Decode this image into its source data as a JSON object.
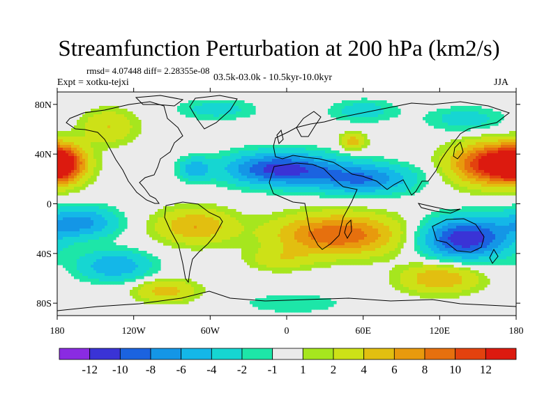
{
  "title": "Streamfunction Perturbation at 200 hPa (km2/s)",
  "stats": "rmsd= 4.07448 diff= 2.28355e-08",
  "experiment": "Expt = xotku-tejxi",
  "time_range": "03.5k-03.0k - 10.5kyr-10.0kyr",
  "season": "JJA",
  "axes": {
    "x_ticks": [
      {
        "lon": -180,
        "label": "180"
      },
      {
        "lon": -120,
        "label": "120W"
      },
      {
        "lon": -60,
        "label": "60W"
      },
      {
        "lon": 0,
        "label": "0"
      },
      {
        "lon": 60,
        "label": "60E"
      },
      {
        "lon": 120,
        "label": "120E"
      },
      {
        "lon": 180,
        "label": "180"
      }
    ],
    "y_ticks": [
      {
        "lat": 80,
        "label": "80N"
      },
      {
        "lat": 40,
        "label": "40N"
      },
      {
        "lat": 0,
        "label": "0"
      },
      {
        "lat": -40,
        "label": "40S"
      },
      {
        "lat": -80,
        "label": "80S"
      }
    ],
    "lon_range": [
      -180,
      180
    ],
    "lat_range": [
      -90,
      90
    ]
  },
  "colorbar": {
    "colors": [
      "#8a2be2",
      "#3a33d6",
      "#1b63e0",
      "#1496e6",
      "#14b7e8",
      "#16d6d2",
      "#1de6a8",
      "#ebebeb",
      "#a6e61e",
      "#cde117",
      "#e2bf10",
      "#e89a0d",
      "#e6700e",
      "#e3420e",
      "#dc1a0f"
    ],
    "labels": [
      "-12",
      "-10",
      "-8",
      "-6",
      "-4",
      "-2",
      "-1",
      "1",
      "2",
      "4",
      "6",
      "8",
      "10",
      "12"
    ]
  },
  "field": {
    "description_note": "anomaly centres (lon, lat, amplitude, lon_radius, lat_radius) in data units",
    "blobs": [
      {
        "lon": 160,
        "lat": 32,
        "amp": 13,
        "rx": 30,
        "ry": 16
      },
      {
        "lon": -178,
        "lat": 32,
        "amp": 13,
        "rx": 18,
        "ry": 14
      },
      {
        "lon": -5,
        "lat": 28,
        "amp": -11,
        "rx": 42,
        "ry": 13
      },
      {
        "lon": 60,
        "lat": 20,
        "amp": -8,
        "rx": 38,
        "ry": 12
      },
      {
        "lon": -72,
        "lat": 28,
        "amp": -5,
        "rx": 12,
        "ry": 9
      },
      {
        "lon": 40,
        "lat": -25,
        "amp": 10,
        "rx": 48,
        "ry": 16
      },
      {
        "lon": -72,
        "lat": -18,
        "amp": 6,
        "rx": 30,
        "ry": 14
      },
      {
        "lon": 140,
        "lat": -28,
        "amp": -12,
        "rx": 34,
        "ry": 16
      },
      {
        "lon": -162,
        "lat": -15,
        "amp": -7,
        "rx": 28,
        "ry": 12
      },
      {
        "lon": -135,
        "lat": -50,
        "amp": -6,
        "rx": 28,
        "ry": 12
      },
      {
        "lon": -95,
        "lat": -70,
        "amp": 5,
        "rx": 24,
        "ry": 9
      },
      {
        "lon": 120,
        "lat": -60,
        "amp": 6,
        "rx": 30,
        "ry": 12
      },
      {
        "lon": -140,
        "lat": 62,
        "amp": 4,
        "rx": 22,
        "ry": 14
      },
      {
        "lon": -55,
        "lat": 76,
        "amp": -3,
        "rx": 30,
        "ry": 8
      },
      {
        "lon": 140,
        "lat": 68,
        "amp": -3,
        "rx": 30,
        "ry": 10
      },
      {
        "lon": 60,
        "lat": 75,
        "amp": -3,
        "rx": 26,
        "ry": 9
      },
      {
        "lon": 52,
        "lat": 50,
        "amp": 5,
        "rx": 10,
        "ry": 7
      },
      {
        "lon": 5,
        "lat": -80,
        "amp": -2,
        "rx": 40,
        "ry": 8
      },
      {
        "lon": -5,
        "lat": -45,
        "amp": 3,
        "rx": 25,
        "ry": 9
      }
    ]
  }
}
